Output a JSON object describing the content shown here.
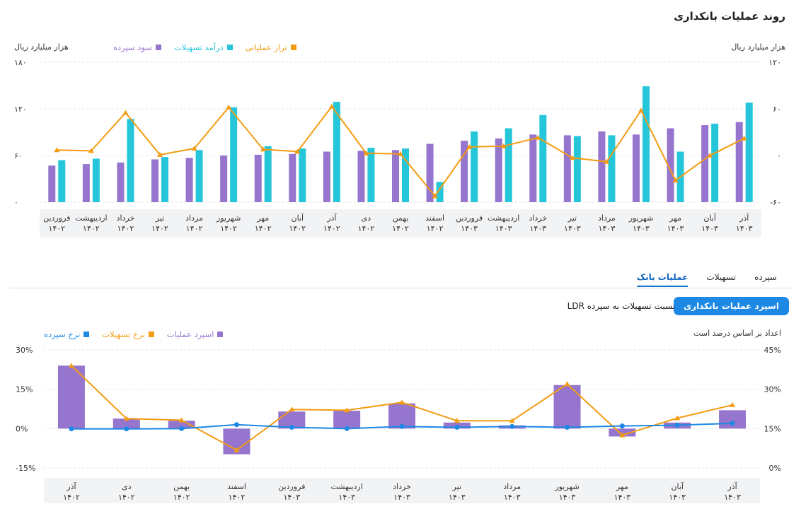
{
  "top": {
    "title": "روند عملیات بانکداری",
    "unit_left": "هزار میلیارد ریال",
    "unit_right": "هزار میلیارد ریال",
    "legend": [
      {
        "label": "تراز عملیاتی",
        "color": "#f39c12"
      },
      {
        "label": "درآمد تسهیلات",
        "color": "#26c6da"
      },
      {
        "label": "سود سپرده",
        "color": "#9575cd"
      }
    ]
  },
  "tabs": [
    {
      "label": "سپرده"
    },
    {
      "label": "تسهیلات"
    },
    {
      "label": "عملیات بانک"
    }
  ],
  "bottom": {
    "button_label": "اسپرد عملیات بانکداری",
    "subtab_label": "نسبت تسهیلات به سپرده LDR",
    "unit_right": "اعداد بر اساس درصد است",
    "legend": [
      {
        "label": "اسپرد عملیات",
        "color": "#9575cd"
      },
      {
        "label": "نرخ تسهیلات",
        "color": "#f39c12"
      },
      {
        "label": "نرخ سپرده",
        "color": "#1e88e5"
      }
    ]
  },
  "chart_data": [
    {
      "type": "bar",
      "title": "روند عملیات بانکداری",
      "categories": [
        [
          "فروردین",
          "۱۴۰۲"
        ],
        [
          "اردیبهشت",
          "۱۴۰۲"
        ],
        [
          "خرداد",
          "۱۴۰۲"
        ],
        [
          "تیر",
          "۱۴۰۲"
        ],
        [
          "مرداد",
          "۱۴۰۲"
        ],
        [
          "شهریور",
          "۱۴۰۲"
        ],
        [
          "مهر",
          "۱۴۰۲"
        ],
        [
          "آبان",
          "۱۴۰۲"
        ],
        [
          "آذر",
          "۱۴۰۲"
        ],
        [
          "دی",
          "۱۴۰۲"
        ],
        [
          "بهمن",
          "۱۴۰۲"
        ],
        [
          "اسفند",
          "۱۴۰۲"
        ],
        [
          "فروردین",
          "۱۴۰۳"
        ],
        [
          "اردیبهشت",
          "۱۴۰۳"
        ],
        [
          "خرداد",
          "۱۴۰۳"
        ],
        [
          "تیر",
          "۱۴۰۳"
        ],
        [
          "مرداد",
          "۱۴۰۳"
        ],
        [
          "شهریور",
          "۱۴۰۳"
        ],
        [
          "مهر",
          "۱۴۰۳"
        ],
        [
          "آبان",
          "۱۴۰۳"
        ],
        [
          "آذر",
          "۱۴۰۳"
        ]
      ],
      "left_ticks": [
        "۱۸۰",
        "۱۲۰",
        "۶۰",
        "۰"
      ],
      "right_ticks": [
        "۱۲۰",
        "۶۰",
        "۰",
        "-۶۰"
      ],
      "left_ylim": [
        0,
        180
      ],
      "right_ylim": [
        -60,
        120
      ],
      "series": [
        {
          "name": "سود سپرده",
          "axis": "left",
          "kind": "bar",
          "color": "#9575cd",
          "values": [
            47,
            49,
            51,
            55,
            57,
            60,
            61,
            62,
            65,
            66,
            67,
            75,
            79,
            82,
            87,
            86,
            91,
            87,
            95,
            99,
            103
          ]
        },
        {
          "name": "درآمد تسهیلات",
          "axis": "left",
          "kind": "bar",
          "color": "#26c6da",
          "values": [
            54,
            56,
            107,
            58,
            67,
            122,
            72,
            69,
            129,
            70,
            69,
            26,
            91,
            95,
            112,
            85,
            86,
            149,
            65,
            101,
            128
          ]
        },
        {
          "name": "تراز عملیاتی",
          "axis": "right",
          "kind": "line",
          "color": "#f39c12",
          "values": [
            7,
            6,
            55,
            1,
            9,
            62,
            8,
            5,
            63,
            3,
            2,
            -52,
            11,
            12,
            23,
            -3,
            -8,
            58,
            -32,
            0,
            22
          ]
        }
      ]
    },
    {
      "type": "bar",
      "title": "اسپرد عملیات بانکداری",
      "categories": [
        [
          "آذر",
          "۱۴۰۲"
        ],
        [
          "دی",
          "۱۴۰۲"
        ],
        [
          "بهمن",
          "۱۴۰۲"
        ],
        [
          "اسفند",
          "۱۴۰۲"
        ],
        [
          "فروردین",
          "۱۴۰۳"
        ],
        [
          "اردیبهشت",
          "۱۴۰۳"
        ],
        [
          "خرداد",
          "۱۴۰۳"
        ],
        [
          "تیر",
          "۱۴۰۳"
        ],
        [
          "مرداد",
          "۱۴۰۳"
        ],
        [
          "شهریور",
          "۱۴۰۳"
        ],
        [
          "مهر",
          "۱۴۰۳"
        ],
        [
          "آبان",
          "۱۴۰۳"
        ],
        [
          "آذر",
          "۱۴۰۳"
        ]
      ],
      "left_ticks": [
        "30%",
        "15%",
        "0%",
        "-15%"
      ],
      "right_ticks": [
        "45%",
        "30%",
        "15%",
        "0%"
      ],
      "left_ylim": [
        -15,
        30
      ],
      "right_ylim": [
        0,
        45
      ],
      "series": [
        {
          "name": "اسپرد عملیات",
          "axis": "left",
          "kind": "bar",
          "color": "#9575cd",
          "values": [
            24,
            3.8,
            3,
            -9.8,
            6.5,
            6.8,
            9.6,
            2.3,
            1.2,
            16.6,
            -3,
            2.3,
            7
          ]
        },
        {
          "name": "نرخ تسهیلات",
          "axis": "right",
          "kind": "line",
          "color": "#f39c12",
          "values": [
            39,
            18.8,
            18.2,
            6.8,
            22.3,
            22,
            25,
            18,
            18,
            32,
            12.5,
            19,
            24
          ]
        },
        {
          "name": "نرخ سپرده",
          "axis": "right",
          "kind": "line",
          "color": "#1e88e5",
          "values": [
            14.9,
            14.9,
            15,
            16.5,
            15.5,
            15,
            15.8,
            15.5,
            15.8,
            15.5,
            16,
            16.3,
            17
          ]
        }
      ]
    }
  ]
}
